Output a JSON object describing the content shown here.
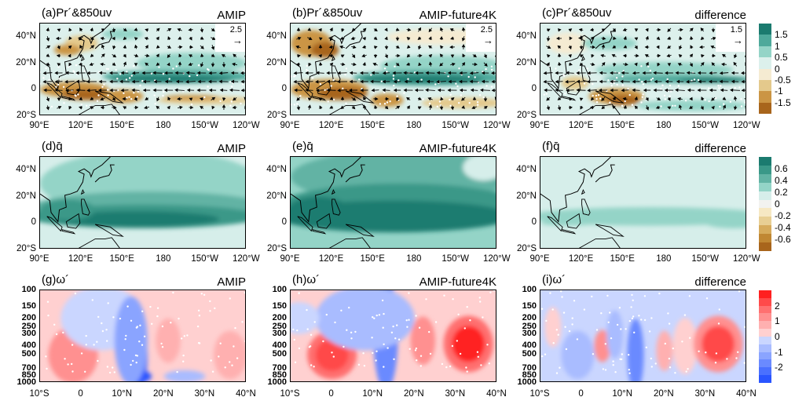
{
  "chart_data": [
    {
      "type": "heatmap",
      "panel": "a",
      "title": "(a)Pr´&850uv",
      "label": "AMIP",
      "ref_vector": "2.5",
      "row": 0,
      "col": 0
    },
    {
      "type": "heatmap",
      "panel": "b",
      "title": "(b)Pr´&850uv",
      "label": "AMIP-future4K",
      "ref_vector": "2.5",
      "row": 0,
      "col": 1
    },
    {
      "type": "heatmap",
      "panel": "c",
      "title": "(c)Pr´&850uv",
      "label": "difference",
      "ref_vector": "1.5",
      "row": 0,
      "col": 2
    },
    {
      "type": "heatmap",
      "panel": "d",
      "title": "(d)q̄",
      "label": "AMIP",
      "row": 1,
      "col": 0
    },
    {
      "type": "heatmap",
      "panel": "e",
      "title": "(e)q̄",
      "label": "AMIP-future4K",
      "row": 1,
      "col": 1
    },
    {
      "type": "heatmap",
      "panel": "f",
      "title": "(f)q̄",
      "label": "difference",
      "row": 1,
      "col": 2
    },
    {
      "type": "heatmap",
      "panel": "g",
      "title": "(g)ω´",
      "label": "AMIP",
      "row": 2,
      "col": 0
    },
    {
      "type": "heatmap",
      "panel": "h",
      "title": "(h)ω´",
      "label": "AMIP-future4K",
      "row": 2,
      "col": 1
    },
    {
      "type": "heatmap",
      "panel": "i",
      "title": "(i)ω´",
      "label": "difference",
      "row": 2,
      "col": 2
    }
  ],
  "axes": {
    "map_x_ticks": [
      "90°E",
      "120°E",
      "150°E",
      "180",
      "150°W",
      "120°W"
    ],
    "map_y_ticks": [
      "40°N",
      "20°N",
      "0",
      "20°S"
    ],
    "map_xlim": [
      90,
      240
    ],
    "map_ylim": [
      -20,
      50
    ],
    "sec_x_ticks": [
      "10°S",
      "0",
      "10°N",
      "20°N",
      "30°N",
      "40°N"
    ],
    "sec_y_ticks": [
      "100",
      "150",
      "200",
      "250",
      "300",
      "400",
      "500",
      "700",
      "850",
      "1000"
    ],
    "sec_xlim": [
      -10,
      40
    ],
    "sec_ylim_hPa": [
      1000,
      100
    ]
  },
  "colorbars": [
    {
      "labels": [
        "1.5",
        "1",
        "0.5",
        "0",
        "-0.5",
        "-1",
        "-1.5"
      ],
      "colors": [
        "#1b7b6f",
        "#4ea99b",
        "#94d4c7",
        "#dcf0ec",
        "#f5ebd2",
        "#e4c98c",
        "#cb9544",
        "#a8651c"
      ]
    },
    {
      "labels": [
        "0.6",
        "0.4",
        "0.2",
        "0",
        "-0.2",
        "-0.4",
        "-0.6"
      ],
      "colors": [
        "#1b7b6f",
        "#3a9888",
        "#62b3a4",
        "#94d4c7",
        "#d6eeea",
        "#f2f2ef",
        "#f6e8c3",
        "#e8cf94",
        "#d6ab5c",
        "#c08733",
        "#a8651c"
      ]
    },
    {
      "labels": [
        "2",
        "1",
        "0",
        "-1",
        "-2"
      ],
      "colors": [
        "#ff2020",
        "#ff4a4a",
        "#ff7070",
        "#ff9090",
        "#ffb0b0",
        "#ffd0d0",
        "#cad6ff",
        "#a9bcff",
        "#8aa4ff",
        "#6a8aff",
        "#4a70ff",
        "#2a55ff"
      ]
    }
  ]
}
